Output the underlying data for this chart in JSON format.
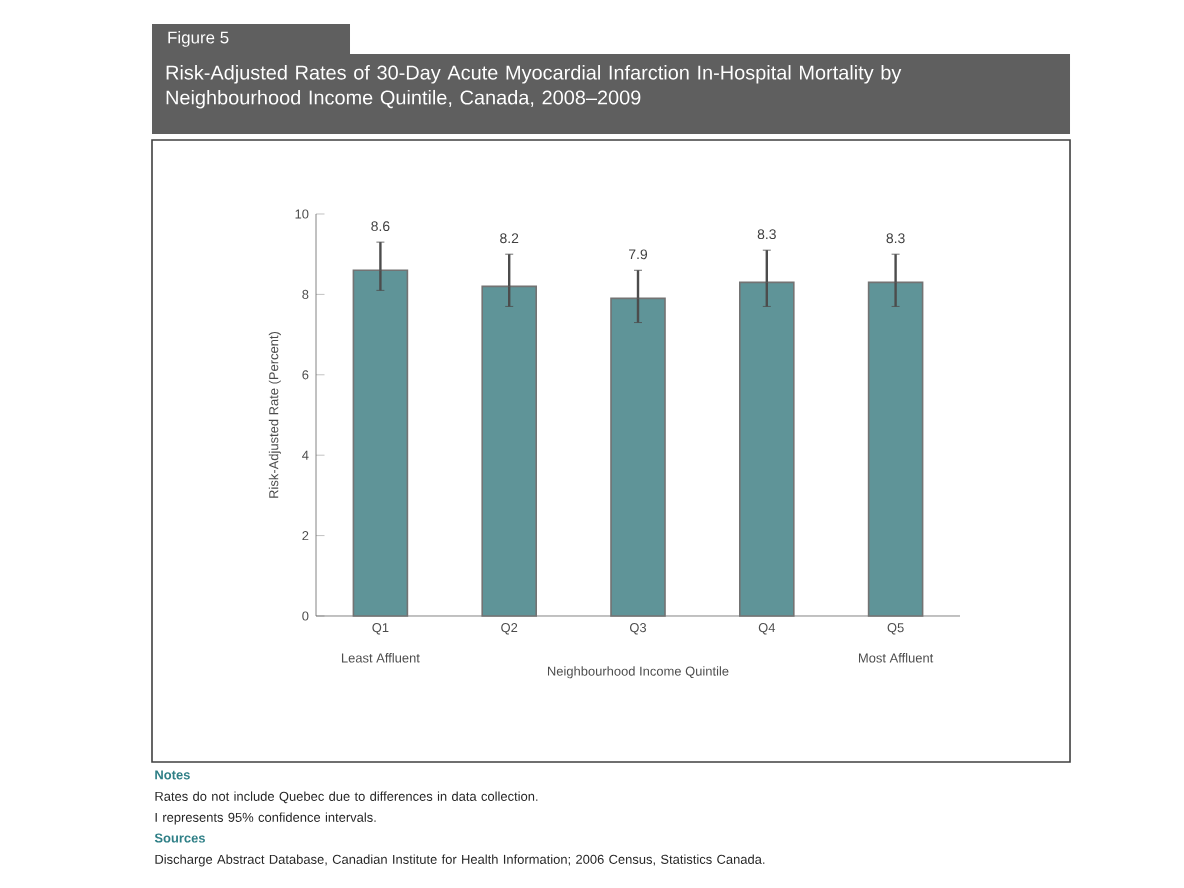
{
  "chart_data": {
    "type": "bar",
    "title": "Risk-Adjusted Rates of 30-Day Acute Myocardial Infarction In-Hospital Mortality by Neighbourhood Income Quintile, Canada, 2008–2009",
    "xlabel": "Neighbourhood Income Quintile",
    "ylabel": "Risk-Adjusted Rate (Percent)",
    "categories": [
      "Q1",
      "Q2",
      "Q3",
      "Q4",
      "Q5"
    ],
    "values": [
      8.6,
      8.2,
      7.9,
      8.3,
      8.3
    ],
    "errors": [
      [
        8.1,
        9.3
      ],
      [
        7.7,
        9.0
      ],
      [
        7.3,
        8.6
      ],
      [
        7.7,
        9.1
      ],
      [
        7.7,
        9.0
      ]
    ],
    "color": "#5f9498",
    "data_labels": true,
    "ylim": [
      0,
      10
    ],
    "yticks": [
      0,
      2,
      4,
      6,
      8,
      10
    ],
    "grid": false,
    "annotations": [
      "Figure 5",
      "Least Affluent",
      "Most Affluent",
      "Notes",
      "Rates do not include Quebec due to differences in data collection.",
      "I represents 95% confidence intervals.",
      "Sources",
      "Discharge Abstract Database, Canadian Institute for Health Information; 2006 Census, Statistics Canada."
    ]
  }
}
